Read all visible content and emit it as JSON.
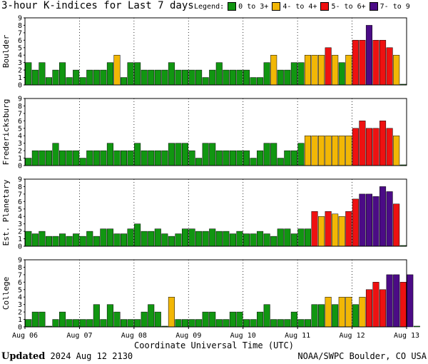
{
  "header": {
    "title": "3-hour K-indices for Last 7 days",
    "legend_label": "Legend:",
    "legend": [
      {
        "label": "0 to 3+",
        "color": "#119611"
      },
      {
        "label": "4- to 4+",
        "color": "#f2b705"
      },
      {
        "label": "5- to 6+",
        "color": "#ee1111"
      },
      {
        "label": "7- to 9",
        "color": "#4b0b86"
      }
    ]
  },
  "footer": {
    "updated_label": "Updated",
    "updated_value": "2024 Aug 12 2130",
    "source": "NOAA/SWPC Boulder, CO USA"
  },
  "chart_data": {
    "type": "bar",
    "xlabel": "Coordinate Universal Time (UTC)",
    "x_ticks": [
      "Aug 06",
      "Aug 07",
      "Aug 08",
      "Aug 09",
      "Aug 10",
      "Aug 11",
      "Aug 12",
      "Aug 13"
    ],
    "ylim": [
      0,
      9
    ],
    "y_ticks": [
      0,
      1,
      2,
      3,
      4,
      5,
      6,
      7,
      8,
      9
    ],
    "grid": true,
    "panels": [
      {
        "name": "Boulder",
        "values": [
          3,
          2,
          3,
          1,
          2,
          3,
          1,
          2,
          1,
          2,
          2,
          2,
          3,
          4,
          1,
          3,
          3,
          2,
          2,
          2,
          2,
          3,
          2,
          2,
          2,
          2,
          1,
          2,
          3,
          2,
          2,
          2,
          2,
          1,
          1,
          3,
          4,
          2,
          2,
          3,
          3,
          4,
          4,
          4,
          5,
          4,
          3,
          4,
          6,
          6,
          8,
          6,
          6,
          5,
          4,
          0.1
        ]
      },
      {
        "name": "Fredericksburg",
        "values": [
          1,
          2,
          2,
          2,
          3,
          2,
          2,
          2,
          1,
          2,
          2,
          2,
          3,
          2,
          2,
          2,
          3,
          2,
          2,
          2,
          2,
          3,
          3,
          3,
          2,
          1,
          3,
          3,
          2,
          2,
          2,
          2,
          2,
          1,
          2,
          3,
          3,
          1,
          2,
          2,
          3,
          4,
          4,
          4,
          4,
          4,
          4,
          4,
          5,
          6,
          5,
          5,
          6,
          5,
          4,
          0.1
        ]
      },
      {
        "name": "Est. Planetary",
        "values": [
          2,
          1.67,
          2,
          1.33,
          1.33,
          1.67,
          1.33,
          1.67,
          1.33,
          2,
          1.33,
          2.33,
          2.33,
          1.67,
          1.67,
          2.33,
          3,
          2,
          2,
          2.33,
          1.67,
          1.33,
          1.67,
          2.33,
          2.33,
          2,
          2,
          2.33,
          2,
          2,
          1.67,
          2,
          1.67,
          1.67,
          2,
          1.67,
          1.33,
          2.33,
          2.33,
          1.67,
          2.33,
          2.33,
          4.67,
          4,
          4.67,
          4.33,
          4,
          4.67,
          6.33,
          7,
          7,
          6.67,
          8,
          7.33,
          5.67,
          0.1
        ]
      },
      {
        "name": "College",
        "values": [
          1,
          2,
          2,
          0.1,
          1,
          2,
          1,
          1,
          1,
          1,
          3,
          1,
          3,
          2,
          1,
          1,
          1,
          2,
          3,
          2,
          0.1,
          4,
          1,
          1,
          1,
          1,
          2,
          2,
          1,
          1,
          2,
          2,
          1,
          1,
          2,
          3,
          1,
          1,
          1,
          2,
          1,
          1,
          3,
          3,
          4,
          3,
          4,
          4,
          3,
          4,
          5,
          6,
          5,
          7,
          7,
          6,
          7,
          0.1
        ]
      }
    ]
  }
}
